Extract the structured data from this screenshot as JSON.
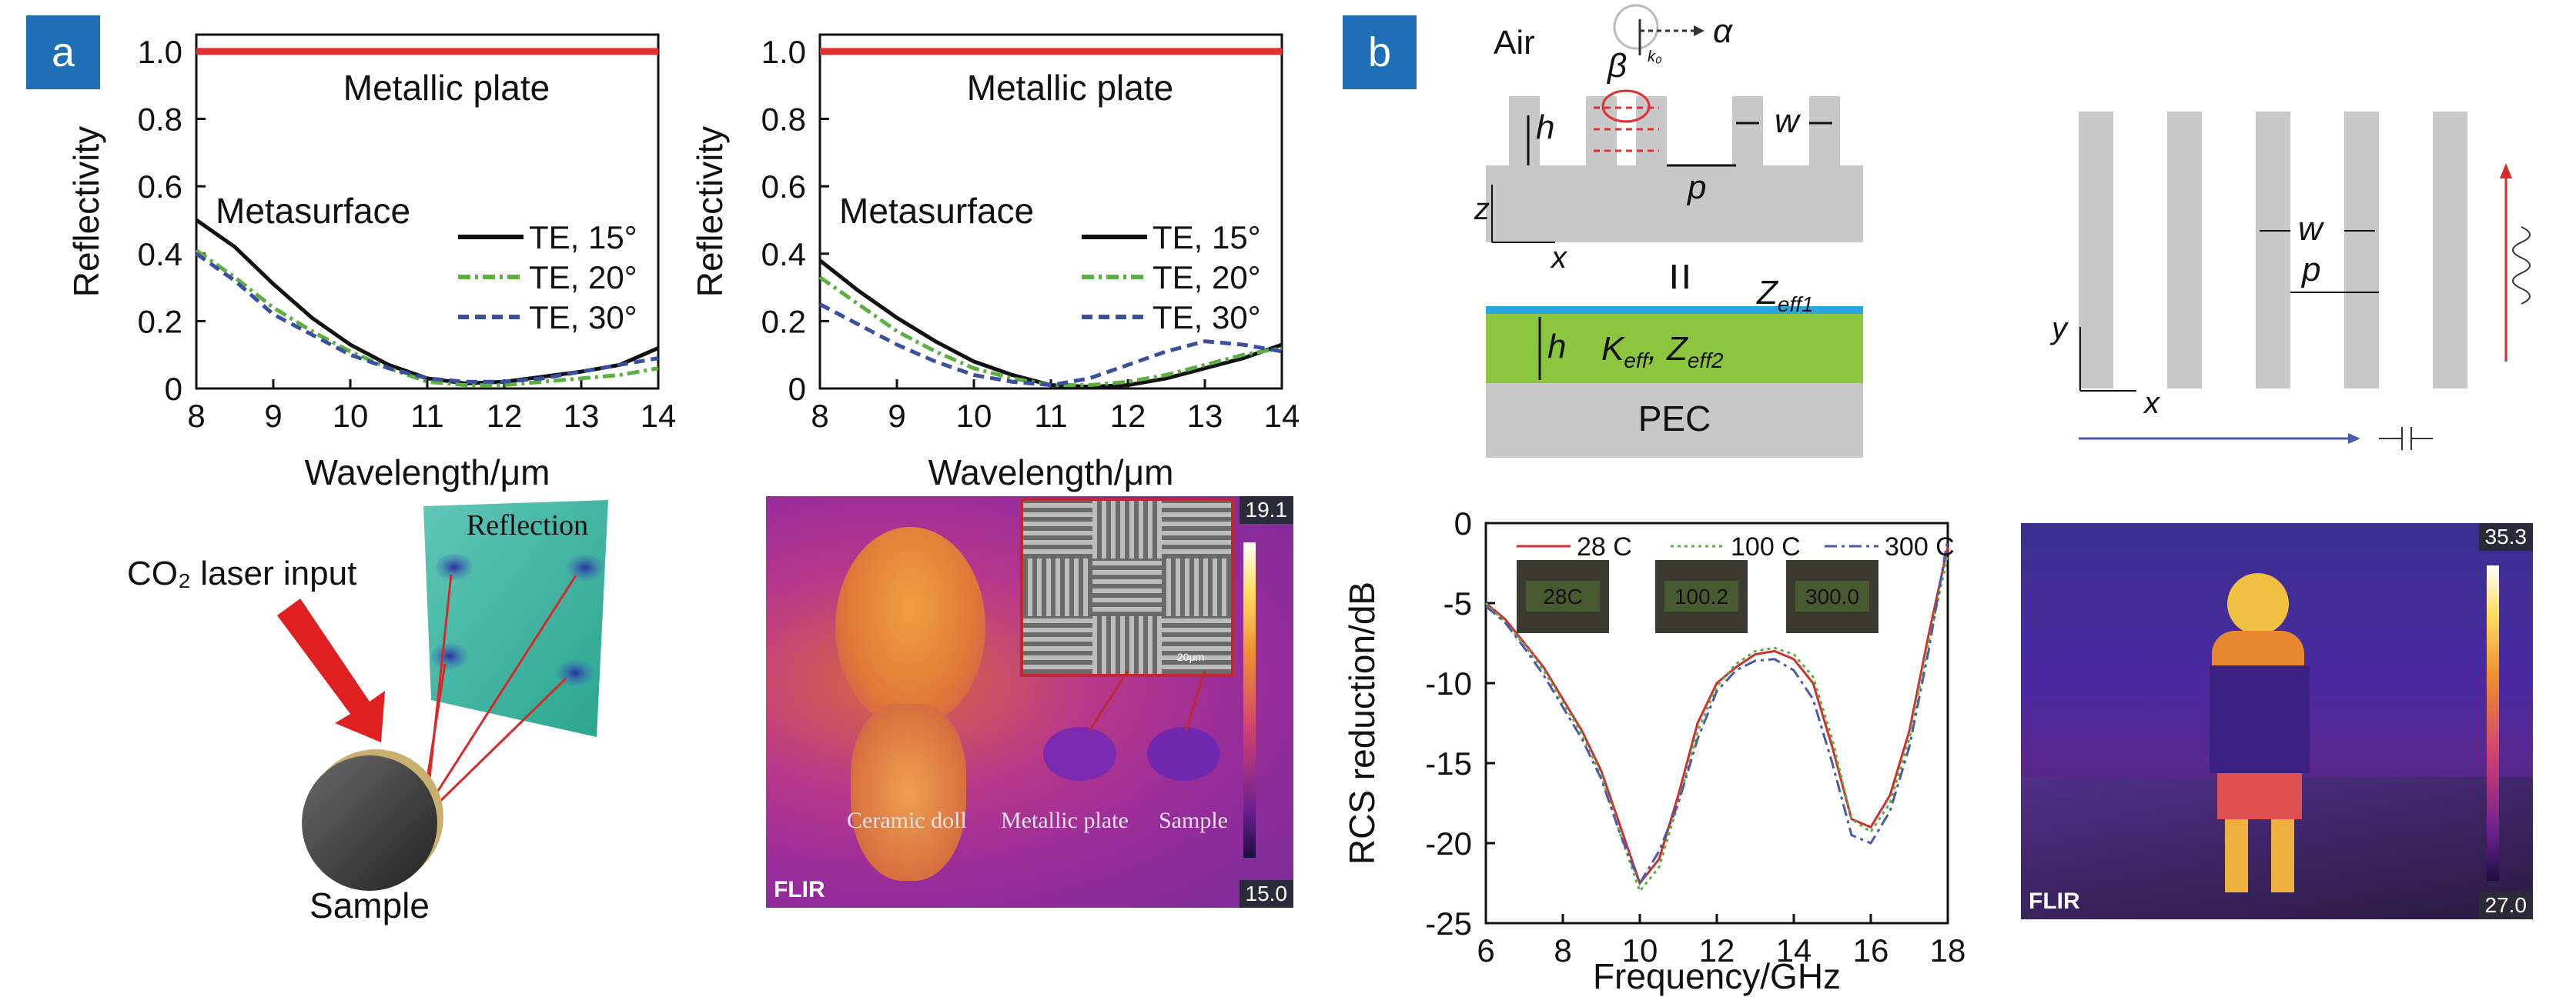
{
  "panels": {
    "a": "a",
    "b": "b"
  },
  "chart_data": [
    {
      "type": "line",
      "xlabel": "Wavelength/μm",
      "ylabel": "Reflectivity",
      "xlim": [
        8,
        14
      ],
      "ylim": [
        0,
        1.05
      ],
      "xticks": [
        "8",
        "9",
        "10",
        "11",
        "12",
        "13",
        "14"
      ],
      "yticks": [
        "0",
        "0.2",
        "0.4",
        "0.6",
        "0.8",
        "1.0"
      ],
      "annotations": [
        "Metallic plate",
        "Metasurface"
      ],
      "legend": "right",
      "series": [
        {
          "name": "Metallic plate",
          "color": "#e03030",
          "dash": "solid",
          "x": [
            8,
            14
          ],
          "y": [
            1.0,
            1.0
          ]
        },
        {
          "name": "TE, 15°",
          "color": "#111111",
          "dash": "solid",
          "x": [
            8,
            8.5,
            9,
            9.5,
            10,
            10.5,
            11,
            11.5,
            12,
            12.5,
            13,
            13.5,
            14
          ],
          "y": [
            0.5,
            0.42,
            0.31,
            0.21,
            0.13,
            0.07,
            0.03,
            0.015,
            0.02,
            0.035,
            0.05,
            0.07,
            0.12
          ]
        },
        {
          "name": "TE, 20°",
          "color": "#5cb040",
          "dash": "dashdot",
          "x": [
            8,
            8.5,
            9,
            9.5,
            10,
            10.5,
            11,
            11.5,
            12,
            12.5,
            13,
            13.5,
            14
          ],
          "y": [
            0.41,
            0.33,
            0.24,
            0.17,
            0.11,
            0.06,
            0.02,
            0.01,
            0.01,
            0.02,
            0.03,
            0.04,
            0.06
          ]
        },
        {
          "name": "TE, 30°",
          "color": "#3a4fa0",
          "dash": "dash",
          "x": [
            8,
            8.5,
            9,
            9.5,
            10,
            10.5,
            11,
            11.5,
            12,
            12.5,
            13,
            13.5,
            14
          ],
          "y": [
            0.4,
            0.32,
            0.22,
            0.16,
            0.1,
            0.06,
            0.03,
            0.02,
            0.02,
            0.03,
            0.05,
            0.07,
            0.09
          ]
        }
      ]
    },
    {
      "type": "line",
      "xlabel": "Wavelength/μm",
      "ylabel": "Reflectivity",
      "xlim": [
        8,
        14
      ],
      "ylim": [
        0,
        1.05
      ],
      "xticks": [
        "8",
        "9",
        "10",
        "11",
        "12",
        "13",
        "14"
      ],
      "yticks": [
        "0",
        "0.2",
        "0.4",
        "0.6",
        "0.8",
        "1.0"
      ],
      "annotations": [
        "Metallic plate",
        "Metasurface"
      ],
      "legend": "right",
      "series": [
        {
          "name": "Metallic plate",
          "color": "#e03030",
          "dash": "solid",
          "x": [
            8,
            14
          ],
          "y": [
            1.0,
            1.0
          ]
        },
        {
          "name": "TE, 15°",
          "color": "#111111",
          "dash": "solid",
          "x": [
            8,
            8.5,
            9,
            9.5,
            10,
            10.5,
            11,
            11.5,
            12,
            12.5,
            13,
            13.5,
            14
          ],
          "y": [
            0.38,
            0.29,
            0.21,
            0.14,
            0.08,
            0.04,
            0.01,
            0.005,
            0.01,
            0.03,
            0.06,
            0.09,
            0.13
          ]
        },
        {
          "name": "TE, 20°",
          "color": "#5cb040",
          "dash": "dashdot",
          "x": [
            8,
            8.5,
            9,
            9.5,
            10,
            10.5,
            11,
            11.5,
            12,
            12.5,
            13,
            13.5,
            14
          ],
          "y": [
            0.33,
            0.25,
            0.17,
            0.11,
            0.06,
            0.03,
            0.01,
            0.01,
            0.02,
            0.04,
            0.07,
            0.1,
            0.12
          ]
        },
        {
          "name": "TE, 30°",
          "color": "#3a4fa0",
          "dash": "dash",
          "x": [
            8,
            8.5,
            9,
            9.5,
            10,
            10.5,
            11,
            11.5,
            12,
            12.5,
            13,
            13.5,
            14
          ],
          "y": [
            0.25,
            0.19,
            0.13,
            0.08,
            0.04,
            0.02,
            0.01,
            0.03,
            0.07,
            0.11,
            0.14,
            0.13,
            0.11
          ]
        }
      ]
    },
    {
      "type": "line",
      "xlabel": "Frequency/GHz",
      "ylabel": "RCS reduction/dB",
      "xlim": [
        6,
        18
      ],
      "ylim": [
        -25,
        0
      ],
      "xticks": [
        "6",
        "8",
        "10",
        "12",
        "14",
        "16",
        "18"
      ],
      "yticks": [
        "0",
        "-5",
        "-10",
        "-15",
        "-20",
        "-25"
      ],
      "legend": "top",
      "series": [
        {
          "name": "28 C",
          "color": "#d03030",
          "dash": "solid",
          "x": [
            6,
            6.5,
            7,
            7.5,
            8,
            8.5,
            9,
            9.5,
            10,
            10.5,
            11,
            11.5,
            12,
            12.5,
            13,
            13.5,
            14,
            14.5,
            15,
            15.5,
            16,
            16.5,
            17,
            17.5,
            18
          ],
          "y": [
            -5,
            -6,
            -7.5,
            -9,
            -11,
            -13,
            -15.5,
            -19,
            -22.5,
            -21,
            -17,
            -12.5,
            -10,
            -9,
            -8.2,
            -8,
            -8.5,
            -10,
            -14,
            -18.5,
            -19,
            -17,
            -13,
            -7,
            -1.5
          ]
        },
        {
          "name": "100 C",
          "color": "#5cb040",
          "dash": "dot",
          "x": [
            6,
            6.5,
            7,
            7.5,
            8,
            8.5,
            9,
            9.5,
            10,
            10.5,
            11,
            11.5,
            12,
            12.5,
            13,
            13.5,
            14,
            14.5,
            15,
            15.5,
            16,
            16.5,
            17,
            17.5,
            18
          ],
          "y": [
            -5,
            -6.2,
            -7.6,
            -9.2,
            -11.2,
            -13.2,
            -15.8,
            -19.5,
            -23,
            -21.5,
            -17.5,
            -13,
            -10.2,
            -8.8,
            -8,
            -7.8,
            -8.2,
            -9.6,
            -13.5,
            -18.5,
            -19.3,
            -17.5,
            -13.5,
            -7.5,
            -2
          ]
        },
        {
          "name": "300 C",
          "color": "#4a5aa8",
          "dash": "dashdot",
          "x": [
            6,
            6.5,
            7,
            7.5,
            8,
            8.5,
            9,
            9.5,
            10,
            10.5,
            11,
            11.5,
            12,
            12.5,
            13,
            13.5,
            14,
            14.5,
            15,
            15.5,
            16,
            16.5,
            17,
            17.5,
            18
          ],
          "y": [
            -5.2,
            -6.2,
            -7.8,
            -9.5,
            -11.5,
            -13.5,
            -16,
            -19.5,
            -22.5,
            -20.5,
            -17.5,
            -13.5,
            -10.5,
            -9.2,
            -8.6,
            -8.5,
            -9.2,
            -11,
            -15,
            -19.5,
            -20,
            -18,
            -14,
            -8,
            -1
          ]
        }
      ]
    }
  ],
  "schematic_a": {
    "laser_label": "CO₂ laser input",
    "reflection_label": "Reflection",
    "sample_label": "Sample"
  },
  "thermal_a": {
    "labels": [
      "Ceramic doll",
      "Metallic plate",
      "Sample"
    ],
    "temp_max": "19.1",
    "temp_min": "15.0",
    "flir": "FLIR",
    "scale_bar": "20μm"
  },
  "schematic_b": {
    "air": "Air",
    "alpha": "α",
    "beta": "β",
    "k0": "k₀",
    "h": "h",
    "w": "w",
    "p": "p",
    "z": "z",
    "x": "x",
    "y": "y",
    "equals": "=",
    "zeff1": "Z",
    "zeff1_sub": "eff1",
    "keff": "K",
    "keff_sub": "eff",
    "zeff2": "Z",
    "zeff2_sub": "eff2",
    "pec": "PEC"
  },
  "rcs_insets": [
    "28C",
    "100.2",
    "300.0"
  ],
  "thermal_b": {
    "temp_max": "35.3",
    "temp_min": "27.0",
    "flir": "FLIR"
  }
}
